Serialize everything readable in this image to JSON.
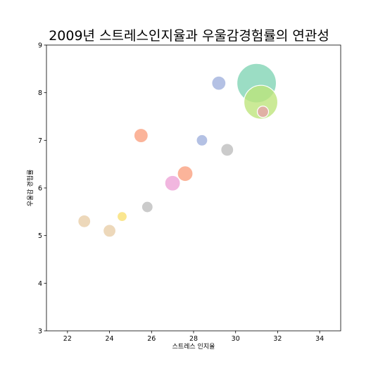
{
  "chart_data": {
    "type": "scatter",
    "title": "2009년 스트레스인지율과 우울감경험률의 연관성",
    "xlabel": "스트레스 인지율",
    "ylabel": "우울감 경험률",
    "xlim": [
      21,
      35
    ],
    "ylim": [
      3,
      9
    ],
    "xticks": [
      22,
      24,
      26,
      28,
      30,
      32,
      34
    ],
    "yticks": [
      3,
      4,
      5,
      6,
      7,
      8,
      9
    ],
    "grid": false,
    "points": [
      {
        "x": 31.0,
        "y": 8.2,
        "size": 28,
        "color": "#7fd3b4"
      },
      {
        "x": 31.2,
        "y": 7.8,
        "size": 24,
        "color": "#bde47a"
      },
      {
        "x": 31.3,
        "y": 7.6,
        "size": 8,
        "color": "#e6a0a8"
      },
      {
        "x": 29.2,
        "y": 8.2,
        "size": 10,
        "color": "#9fb0dc"
      },
      {
        "x": 28.4,
        "y": 7.0,
        "size": 8,
        "color": "#9fb0dc"
      },
      {
        "x": 29.6,
        "y": 6.8,
        "size": 9,
        "color": "#bdbdbd"
      },
      {
        "x": 25.5,
        "y": 7.1,
        "size": 10,
        "color": "#fa9f7e"
      },
      {
        "x": 27.6,
        "y": 6.3,
        "size": 11,
        "color": "#fa9f7e"
      },
      {
        "x": 27.0,
        "y": 6.1,
        "size": 11,
        "color": "#eda2d6"
      },
      {
        "x": 25.8,
        "y": 5.6,
        "size": 8,
        "color": "#bdbdbd"
      },
      {
        "x": 24.6,
        "y": 5.4,
        "size": 7,
        "color": "#f9df6f"
      },
      {
        "x": 22.8,
        "y": 5.3,
        "size": 9,
        "color": "#e8cda6"
      },
      {
        "x": 24.0,
        "y": 5.1,
        "size": 9,
        "color": "#e8cda6"
      }
    ]
  }
}
